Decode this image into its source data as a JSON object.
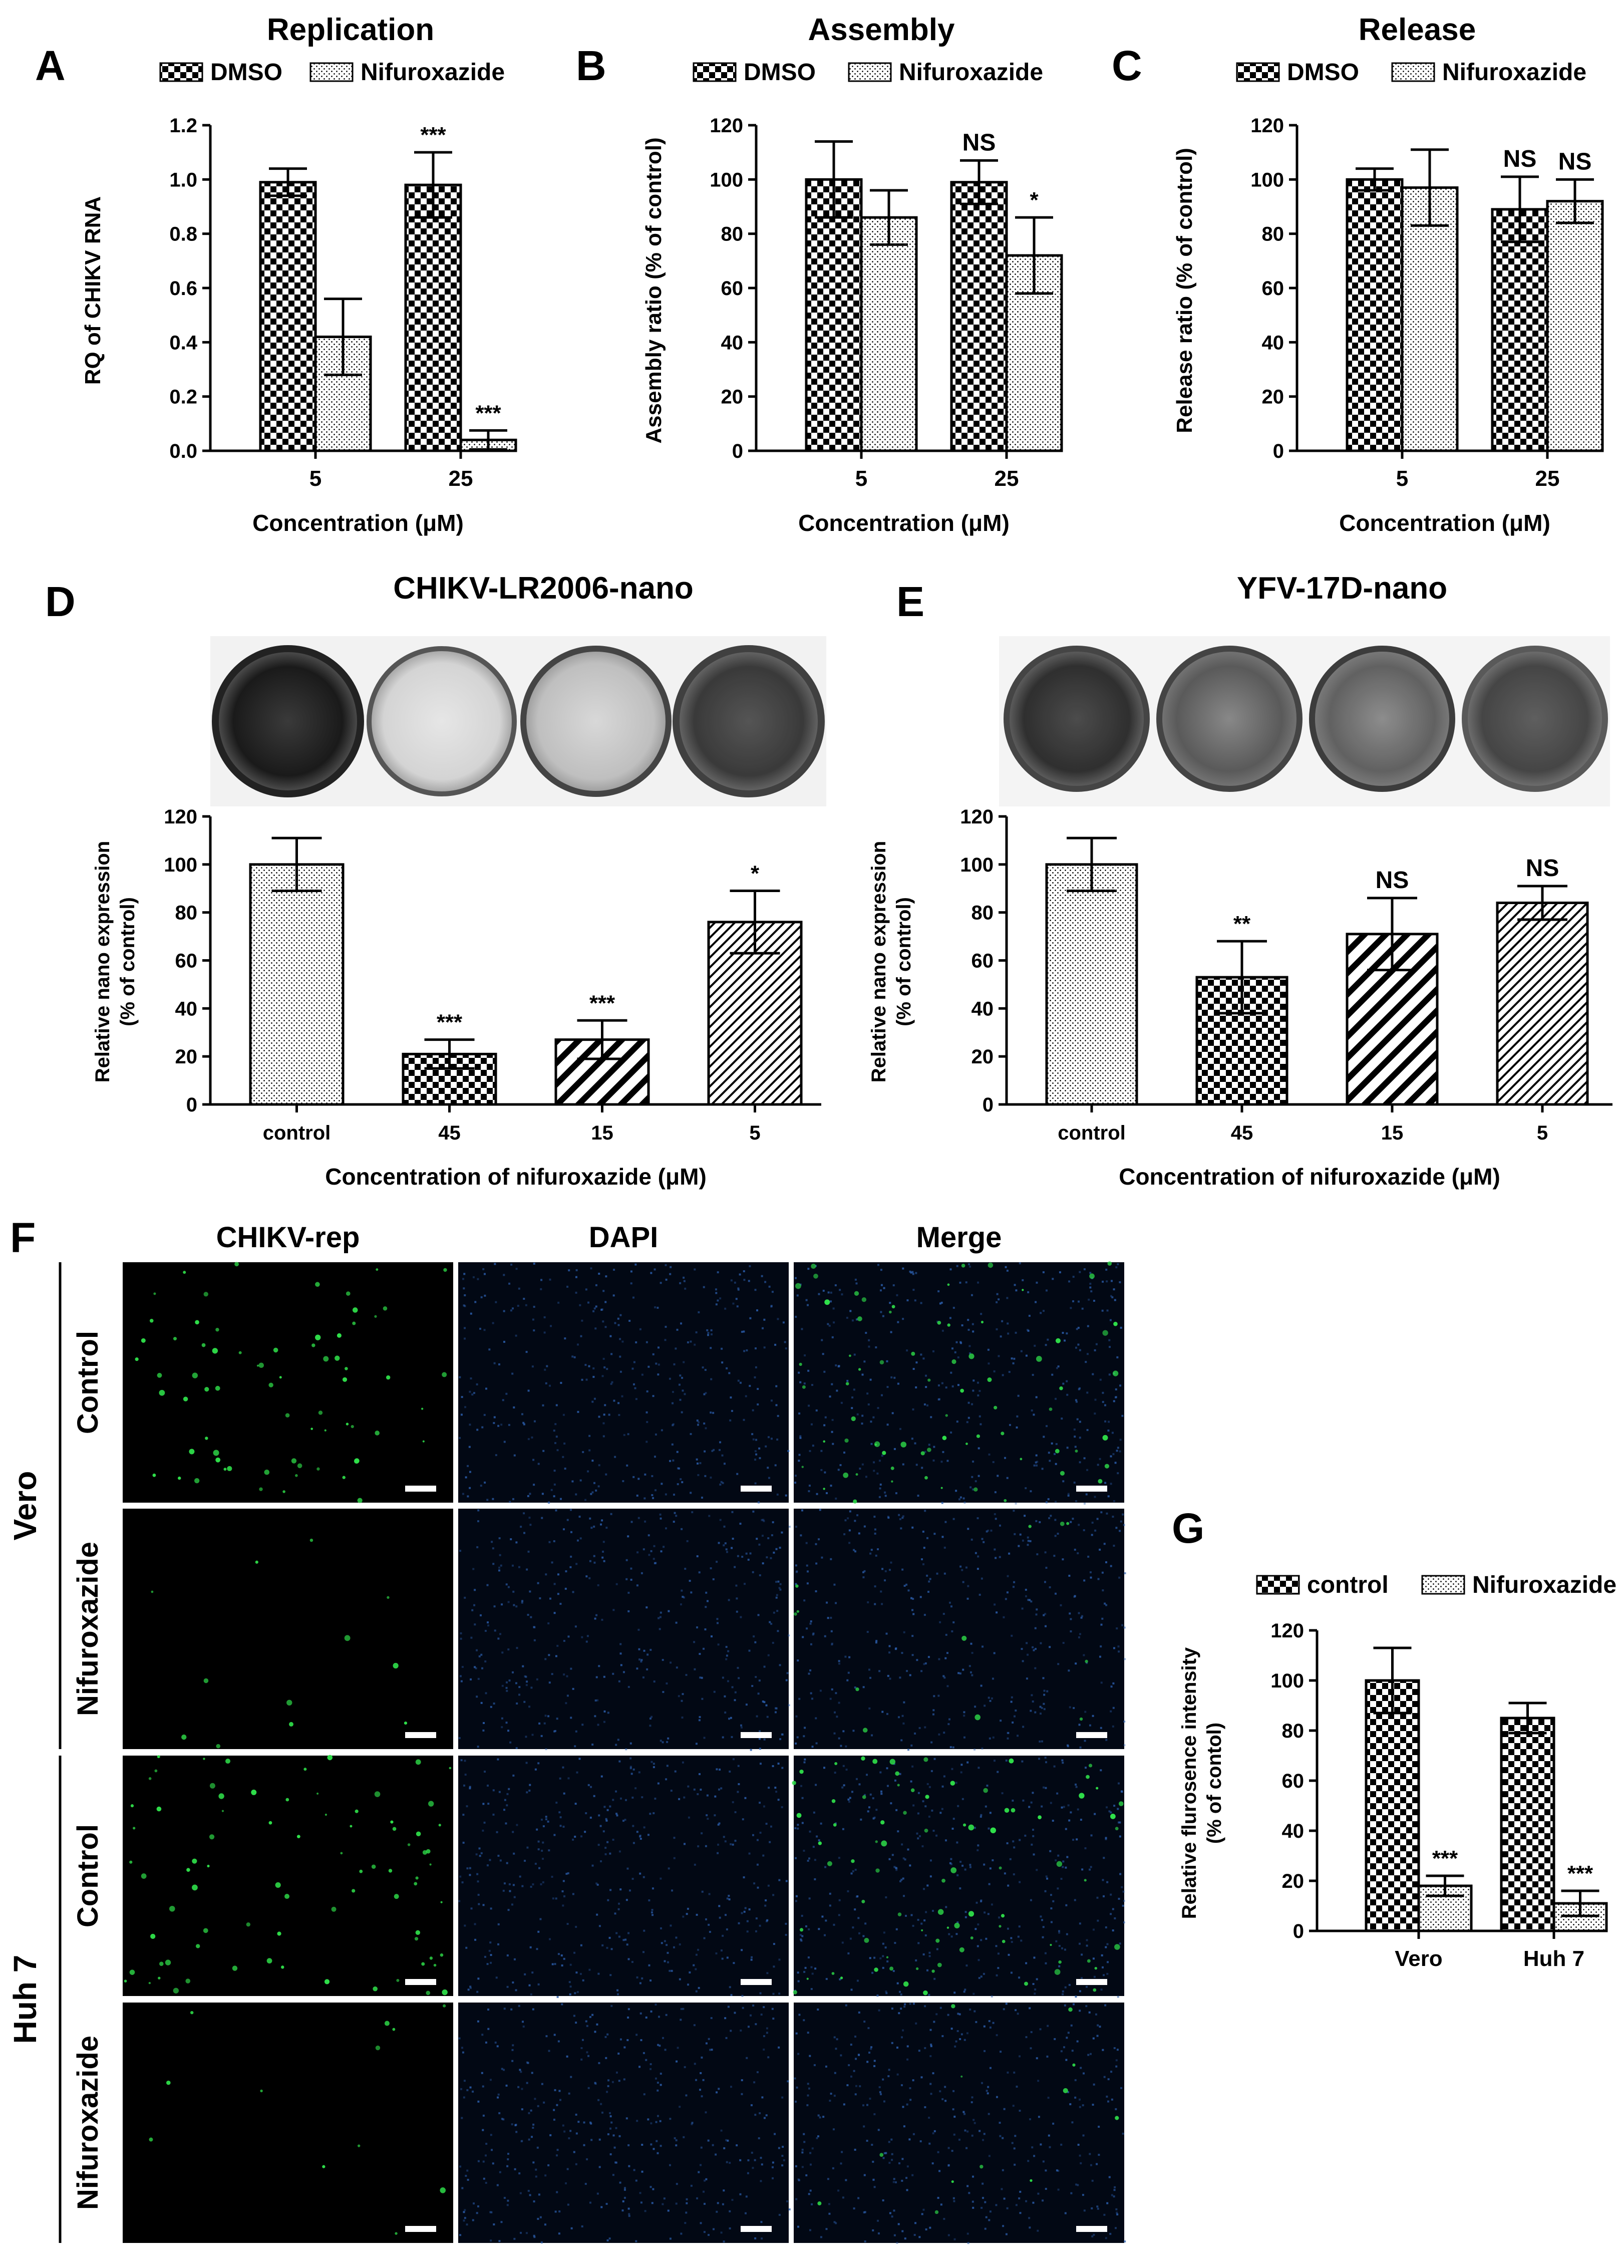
{
  "panels": {
    "A": {
      "letter": "A"
    },
    "B": {
      "letter": "B"
    },
    "C": {
      "letter": "C"
    },
    "D": {
      "letter": "D",
      "title": "CHIKV-LR2006-nano"
    },
    "E": {
      "letter": "E",
      "title": "YFV-17D-nano"
    },
    "F": {
      "letter": "F"
    },
    "G": {
      "letter": "G"
    }
  },
  "microscopy": {
    "columns": [
      "CHIKV-rep",
      "DAPI",
      "Merge"
    ],
    "cell_lines": [
      "Vero",
      "Huh 7"
    ],
    "row_labels": [
      "Control",
      "Nifuroxazide",
      "Control",
      "Nifuroxazide"
    ],
    "green_color": "#2fe04a",
    "blue_color": "#2c5fae"
  },
  "colors": {
    "bar_fill": "#ffffff",
    "bar_stroke": "#000000",
    "checker": "#000000"
  },
  "chart_data": [
    {
      "id": "A",
      "type": "bar",
      "title": "Replication",
      "categories": [
        "5",
        "25"
      ],
      "series": [
        {
          "name": "DMSO",
          "pattern": "checker",
          "values": [
            0.99,
            0.98
          ],
          "errors": [
            0.05,
            0.12
          ]
        },
        {
          "name": "Nifuroxazide",
          "pattern": "dots",
          "values": [
            0.42,
            0.04
          ],
          "errors": [
            0.14,
            0.035
          ]
        }
      ],
      "significance": [
        [
          "",
          "***"
        ],
        [
          "",
          "***"
        ]
      ],
      "xlabel": "Concentration (μM)",
      "ylabel": "RQ of CHIKV RNA",
      "ylim": [
        0,
        1.2
      ],
      "yticks": [
        "0.0",
        "0.2",
        "0.4",
        "0.6",
        "0.8",
        "1.0",
        "1.2"
      ],
      "grid": false,
      "legend": "top"
    },
    {
      "id": "B",
      "type": "bar",
      "title": "Assembly",
      "categories": [
        "5",
        "25"
      ],
      "series": [
        {
          "name": "DMSO",
          "pattern": "checker",
          "values": [
            100,
            99
          ],
          "errors": [
            14,
            8
          ]
        },
        {
          "name": "Nifuroxazide",
          "pattern": "dots",
          "values": [
            86,
            72
          ],
          "errors": [
            10,
            14
          ]
        }
      ],
      "significance": [
        [
          "",
          "NS"
        ],
        [
          "",
          "*"
        ]
      ],
      "xlabel": "Concentration (μM)",
      "ylabel": "Assembly ratio (% of  control)",
      "ylim": [
        0,
        120
      ],
      "yticks": [
        "0",
        "20",
        "40",
        "60",
        "80",
        "100",
        "120"
      ],
      "grid": false,
      "legend": "top"
    },
    {
      "id": "C",
      "type": "bar",
      "title": "Release",
      "categories": [
        "5",
        "25"
      ],
      "series": [
        {
          "name": "DMSO",
          "pattern": "checker",
          "values": [
            100,
            89
          ],
          "errors": [
            4,
            12
          ]
        },
        {
          "name": "Nifuroxazide",
          "pattern": "dots",
          "values": [
            97,
            92
          ],
          "errors": [
            14,
            8
          ]
        }
      ],
      "significance": [
        [
          "",
          "NS"
        ],
        [
          "",
          "NS"
        ]
      ],
      "xlabel": "Concentration (μM)",
      "ylabel": "Release ratio (% of  control)",
      "ylim": [
        0,
        120
      ],
      "yticks": [
        "0",
        "20",
        "40",
        "60",
        "80",
        "100",
        "120"
      ],
      "grid": false,
      "legend": "top"
    },
    {
      "id": "D",
      "type": "bar",
      "title": "",
      "categories": [
        "control",
        "45",
        "15",
        "5"
      ],
      "patterns": [
        "dots",
        "checker",
        "diag",
        "hatch"
      ],
      "values": [
        100,
        21,
        27,
        76
      ],
      "errors": [
        11,
        6,
        8,
        13
      ],
      "significance": [
        "",
        "***",
        "***",
        "*"
      ],
      "xlabel": "Concentration of nifuroxazide (μM)",
      "ylabel": [
        "Relative nano expression",
        "(% of  control)"
      ],
      "ylim": [
        0,
        120
      ],
      "yticks": [
        "0",
        "20",
        "40",
        "60",
        "80",
        "100",
        "120"
      ],
      "grid": false
    },
    {
      "id": "E",
      "type": "bar",
      "title": "",
      "categories": [
        "control",
        "45",
        "15",
        "5"
      ],
      "patterns": [
        "dots",
        "checker",
        "diag",
        "hatch"
      ],
      "values": [
        100,
        53,
        71,
        84
      ],
      "errors": [
        11,
        15,
        15,
        7
      ],
      "significance": [
        "",
        "**",
        "NS",
        "NS"
      ],
      "xlabel": "Concentration of nifuroxazide (μM)",
      "ylabel": [
        "Relative nano expression",
        "(% of  control)"
      ],
      "ylim": [
        0,
        120
      ],
      "yticks": [
        "0",
        "20",
        "40",
        "60",
        "80",
        "100",
        "120"
      ],
      "grid": false
    },
    {
      "id": "G",
      "type": "bar",
      "title": "",
      "categories": [
        "Vero",
        "Huh 7"
      ],
      "series": [
        {
          "name": "control",
          "pattern": "checker",
          "values": [
            100,
            85
          ],
          "errors": [
            13,
            6
          ]
        },
        {
          "name": "Nifuroxazide",
          "pattern": "dots",
          "values": [
            18,
            11
          ],
          "errors": [
            4,
            5
          ]
        }
      ],
      "significance": [
        [
          "",
          ""
        ],
        [
          "***",
          "***"
        ]
      ],
      "xlabel": "",
      "ylabel": [
        "Relative flurosence intensity",
        "(% of contol)"
      ],
      "ylim": [
        0,
        120
      ],
      "yticks": [
        "0",
        "20",
        "40",
        "60",
        "80",
        "100",
        "120"
      ],
      "grid": false,
      "legend": "top"
    }
  ]
}
